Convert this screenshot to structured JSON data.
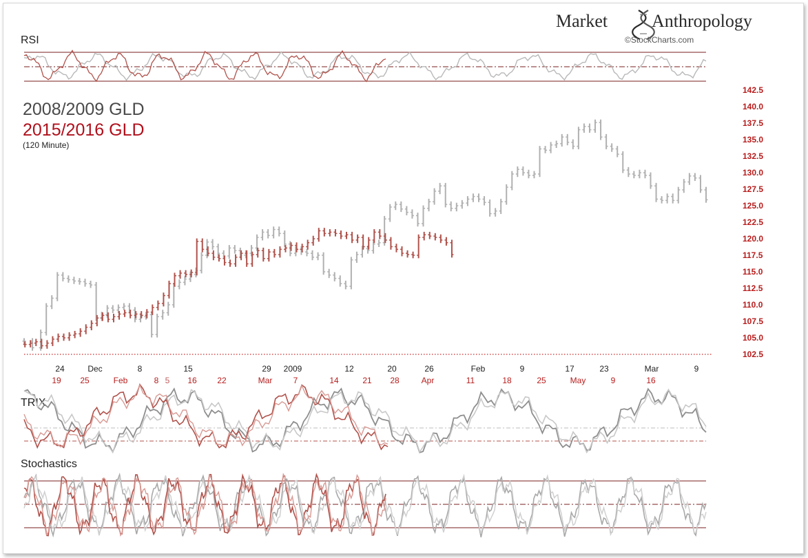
{
  "brand": {
    "left": "Market",
    "right": "Anthropology",
    "source": "©StockCharts.com"
  },
  "header": {
    "title_a": "2008/2009 GLD",
    "title_b": "2015/2016 GLD",
    "interval": "(120 Minute)"
  },
  "panels": {
    "rsi": "RSI",
    "trix": "TRIX",
    "stoch": "Stochastics"
  },
  "colors": {
    "gray": "#b0b0b0",
    "red": "#b0514a",
    "dark": "#5a1a18",
    "axis": "#b71c1c",
    "title": "#4a4a4a",
    "ref": "#7a1e1e"
  },
  "chart_data": {
    "type": "bar",
    "title": "",
    "y_axis": {
      "min": 102.5,
      "max": 142.5,
      "ticks": [
        102.5,
        105.0,
        107.5,
        110.0,
        112.5,
        115.0,
        117.5,
        120.0,
        122.5,
        125.0,
        127.5,
        130.0,
        132.5,
        135.0,
        137.5,
        140.0,
        142.5
      ]
    },
    "x_labels_2008": [
      "24",
      "Dec",
      "8",
      "15",
      "29",
      "2009",
      "12",
      "20",
      "26",
      "Feb",
      "9",
      "17",
      "23",
      "Mar",
      "9"
    ],
    "x_labels_2015": [
      "19",
      "25",
      "Feb",
      "8",
      "5",
      "16",
      "22",
      "Mar",
      "7",
      "14",
      "21",
      "28",
      "Apr",
      "11",
      "18",
      "25",
      "May",
      "9",
      "16"
    ],
    "series": [
      {
        "name": "2008/2009 GLD",
        "points": [
          [
            0,
            104.5
          ],
          [
            3,
            103.5
          ],
          [
            6,
            105.8
          ],
          [
            8,
            109.8
          ],
          [
            10,
            111.0
          ],
          [
            12,
            114.5
          ],
          [
            14,
            114.0
          ],
          [
            16,
            113.8
          ],
          [
            18,
            113.6
          ],
          [
            20,
            113.5
          ],
          [
            22,
            113.2
          ],
          [
            24,
            113.0
          ],
          [
            26,
            108.0
          ],
          [
            28,
            108.5
          ],
          [
            30,
            109.5
          ],
          [
            32,
            109.2
          ],
          [
            34,
            109.6
          ],
          [
            36,
            109.8
          ],
          [
            38,
            109.2
          ],
          [
            40,
            107.8
          ],
          [
            42,
            108.2
          ],
          [
            44,
            108.5
          ],
          [
            46,
            105.5
          ],
          [
            48,
            108.2
          ],
          [
            50,
            108.8
          ],
          [
            52,
            110.0
          ],
          [
            54,
            112.8
          ],
          [
            56,
            113.4
          ],
          [
            58,
            113.9
          ],
          [
            60,
            114.6
          ],
          [
            62,
            115.2
          ],
          [
            64,
            117.5
          ],
          [
            66,
            119.5
          ],
          [
            68,
            118.8
          ],
          [
            70,
            117.8
          ],
          [
            72,
            117.4
          ],
          [
            74,
            118.6
          ],
          [
            76,
            118.2
          ],
          [
            78,
            117.5
          ],
          [
            80,
            117.8
          ],
          [
            82,
            118.6
          ],
          [
            84,
            120.2
          ],
          [
            86,
            121.0
          ],
          [
            88,
            120.5
          ],
          [
            90,
            121.4
          ],
          [
            92,
            120.8
          ],
          [
            94,
            119.2
          ],
          [
            96,
            117.8
          ],
          [
            98,
            118.4
          ],
          [
            100,
            118.0
          ],
          [
            102,
            117.8
          ],
          [
            104,
            117.2
          ],
          [
            106,
            117.5
          ],
          [
            108,
            115.0
          ],
          [
            110,
            114.5
          ],
          [
            112,
            114.0
          ],
          [
            114,
            113.2
          ],
          [
            116,
            112.8
          ],
          [
            118,
            116.8
          ],
          [
            120,
            117.6
          ],
          [
            122,
            118.5
          ],
          [
            124,
            118.2
          ],
          [
            126,
            119.2
          ],
          [
            128,
            119.4
          ],
          [
            130,
            123.0
          ],
          [
            132,
            124.8
          ],
          [
            134,
            125.2
          ],
          [
            136,
            124.5
          ],
          [
            138,
            124.0
          ],
          [
            140,
            123.5
          ],
          [
            142,
            122.3
          ],
          [
            144,
            124.6
          ],
          [
            146,
            125.6
          ],
          [
            148,
            127.2
          ],
          [
            150,
            128.0
          ],
          [
            152,
            125.2
          ],
          [
            154,
            124.6
          ],
          [
            156,
            125.0
          ],
          [
            158,
            125.4
          ],
          [
            160,
            126.0
          ],
          [
            162,
            126.4
          ],
          [
            164,
            126.0
          ],
          [
            166,
            125.5
          ],
          [
            168,
            123.8
          ],
          [
            170,
            124.2
          ],
          [
            172,
            125.6
          ],
          [
            174,
            127.8
          ],
          [
            176,
            129.8
          ],
          [
            178,
            130.5
          ],
          [
            180,
            130.0
          ],
          [
            182,
            129.6
          ],
          [
            184,
            129.8
          ],
          [
            186,
            133.6
          ],
          [
            188,
            133.4
          ],
          [
            190,
            134.2
          ],
          [
            192,
            134.4
          ],
          [
            194,
            135.4
          ],
          [
            196,
            134.6
          ],
          [
            198,
            134.0
          ],
          [
            200,
            136.5
          ],
          [
            202,
            137.0
          ],
          [
            204,
            136.5
          ],
          [
            206,
            137.6
          ],
          [
            208,
            135.4
          ],
          [
            210,
            134.0
          ],
          [
            212,
            133.6
          ],
          [
            214,
            132.8
          ],
          [
            216,
            130.4
          ],
          [
            218,
            129.8
          ],
          [
            220,
            129.6
          ],
          [
            222,
            130.0
          ],
          [
            224,
            129.6
          ],
          [
            226,
            128.0
          ],
          [
            228,
            126.0
          ],
          [
            230,
            125.8
          ],
          [
            232,
            126.4
          ],
          [
            234,
            125.8
          ],
          [
            236,
            127.4
          ],
          [
            238,
            128.6
          ],
          [
            240,
            129.5
          ],
          [
            242,
            129.2
          ],
          [
            244,
            127.4
          ],
          [
            246,
            125.9
          ]
        ]
      },
      {
        "name": "2015/2016 GLD",
        "points": [
          [
            0,
            104.0
          ],
          [
            2,
            104.2
          ],
          [
            4,
            104.4
          ],
          [
            6,
            103.8
          ],
          [
            8,
            104.2
          ],
          [
            10,
            104.8
          ],
          [
            12,
            105.2
          ],
          [
            14,
            105.0
          ],
          [
            16,
            105.4
          ],
          [
            18,
            105.6
          ],
          [
            20,
            106.0
          ],
          [
            22,
            106.6
          ],
          [
            24,
            107.2
          ],
          [
            26,
            108.0
          ],
          [
            28,
            108.4
          ],
          [
            30,
            107.8
          ],
          [
            32,
            108.2
          ],
          [
            34,
            108.6
          ],
          [
            36,
            108.8
          ],
          [
            38,
            108.4
          ],
          [
            40,
            108.6
          ],
          [
            42,
            108.4
          ],
          [
            44,
            108.9
          ],
          [
            46,
            109.6
          ],
          [
            48,
            110.2
          ],
          [
            50,
            111.4
          ],
          [
            52,
            113.2
          ],
          [
            54,
            114.4
          ],
          [
            56,
            114.8
          ],
          [
            58,
            114.6
          ],
          [
            60,
            114.9
          ],
          [
            62,
            119.6
          ],
          [
            64,
            118.4
          ],
          [
            66,
            117.8
          ],
          [
            68,
            117.2
          ],
          [
            70,
            117.0
          ],
          [
            72,
            116.4
          ],
          [
            74,
            116.2
          ],
          [
            76,
            117.2
          ],
          [
            78,
            117.8
          ],
          [
            80,
            116.2
          ],
          [
            82,
            117.6
          ],
          [
            84,
            118.2
          ],
          [
            86,
            117.0
          ],
          [
            88,
            118.0
          ],
          [
            90,
            117.6
          ],
          [
            92,
            118.4
          ],
          [
            94,
            118.6
          ],
          [
            96,
            119.0
          ],
          [
            98,
            118.4
          ],
          [
            100,
            118.8
          ],
          [
            102,
            119.4
          ],
          [
            104,
            120.0
          ],
          [
            106,
            121.2
          ],
          [
            108,
            120.8
          ],
          [
            110,
            121.0
          ],
          [
            112,
            120.8
          ],
          [
            114,
            120.4
          ],
          [
            116,
            120.6
          ],
          [
            118,
            119.8
          ],
          [
            120,
            120.2
          ],
          [
            122,
            118.8
          ],
          [
            124,
            119.8
          ],
          [
            126,
            121.0
          ],
          [
            128,
            120.4
          ],
          [
            130,
            119.8
          ],
          [
            132,
            118.8
          ],
          [
            134,
            118.4
          ],
          [
            136,
            117.8
          ],
          [
            138,
            117.6
          ],
          [
            140,
            117.5
          ],
          [
            142,
            120.2
          ],
          [
            144,
            120.6
          ],
          [
            146,
            120.4
          ],
          [
            148,
            120.2
          ],
          [
            150,
            119.8
          ],
          [
            152,
            119.4
          ],
          [
            154,
            117.6
          ]
        ]
      }
    ],
    "reference_line": 102.5
  }
}
